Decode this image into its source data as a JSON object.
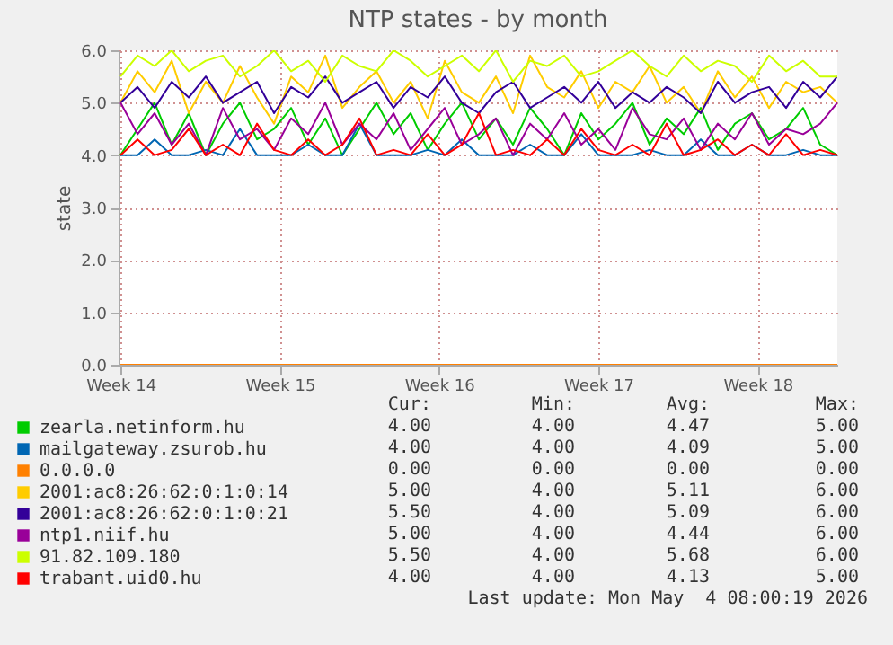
{
  "chart_data": {
    "type": "line",
    "title": "NTP states - by month",
    "ylabel": "state",
    "x": [
      "2026-03-30T00:00",
      "2026-03-30T18:00",
      "2026-03-31T12:00",
      "2026-04-01T06:00",
      "2026-04-02T00:00",
      "2026-04-02T18:00",
      "2026-04-03T12:00",
      "2026-04-04T06:00",
      "2026-04-05T00:00",
      "2026-04-05T18:00",
      "2026-04-06T12:00",
      "2026-04-07T06:00",
      "2026-04-08T00:00",
      "2026-04-08T18:00",
      "2026-04-09T12:00",
      "2026-04-10T06:00",
      "2026-04-11T00:00",
      "2026-04-11T18:00",
      "2026-04-12T12:00",
      "2026-04-13T06:00",
      "2026-04-14T00:00",
      "2026-04-14T18:00",
      "2026-04-15T12:00",
      "2026-04-16T06:00",
      "2026-04-17T00:00",
      "2026-04-17T18:00",
      "2026-04-18T12:00",
      "2026-04-19T06:00",
      "2026-04-20T00:00",
      "2026-04-20T18:00",
      "2026-04-21T12:00",
      "2026-04-22T06:00",
      "2026-04-23T00:00",
      "2026-04-23T18:00",
      "2026-04-24T12:00",
      "2026-04-25T06:00",
      "2026-04-26T00:00",
      "2026-04-26T18:00",
      "2026-04-27T12:00",
      "2026-04-28T06:00",
      "2026-04-29T00:00",
      "2026-04-29T18:00",
      "2026-04-30T12:00"
    ],
    "xlim": [
      "2026-03-29T22:00",
      "2026-04-30T12:00"
    ],
    "xticks": [
      {
        "value": "2026-03-30",
        "label": "Week 14"
      },
      {
        "value": "2026-04-06",
        "label": "Week 15"
      },
      {
        "value": "2026-04-13",
        "label": "Week 16"
      },
      {
        "value": "2026-04-20",
        "label": "Week 17"
      },
      {
        "value": "2026-04-27",
        "label": "Week 18"
      }
    ],
    "ylim": [
      0,
      6
    ],
    "yticks": [
      {
        "value": 0,
        "label": "0.0"
      },
      {
        "value": 1,
        "label": "1.0"
      },
      {
        "value": 2,
        "label": "2.0"
      },
      {
        "value": 3,
        "label": "3.0"
      },
      {
        "value": 4,
        "label": "4.0"
      },
      {
        "value": 5,
        "label": "5.0"
      },
      {
        "value": 6,
        "label": "6.0"
      }
    ],
    "grid": true,
    "legend": "bottom",
    "series": [
      {
        "name": "zearla.netinform.hu",
        "color": "#00cc00",
        "values": [
          4,
          4.5,
          5,
          4.2,
          4.8,
          4,
          4.6,
          5,
          4.3,
          4.5,
          4.9,
          4.2,
          4.7,
          4,
          4.5,
          5,
          4.4,
          4.8,
          4.1,
          4.6,
          5,
          4.3,
          4.7,
          4.2,
          4.9,
          4.5,
          4,
          4.8,
          4.3,
          4.6,
          5,
          4.2,
          4.7,
          4.4,
          4.9,
          4.1,
          4.6,
          4.8,
          4.3,
          4.5,
          4.9,
          4.2,
          4
        ]
      },
      {
        "name": "mailgateway.zsurob.hu",
        "color": "#0066b3",
        "values": [
          4,
          4,
          4.3,
          4,
          4,
          4.1,
          4,
          4.5,
          4,
          4,
          4,
          4.2,
          4,
          4,
          4.6,
          4,
          4,
          4,
          4.1,
          4,
          4.3,
          4,
          4,
          4,
          4.2,
          4,
          4,
          4.4,
          4,
          4,
          4,
          4.1,
          4,
          4,
          4.3,
          4,
          4,
          4.2,
          4,
          4,
          4.1,
          4,
          4
        ]
      },
      {
        "name": "0.0.0.0",
        "color": "#ff8000",
        "values": [
          0,
          0,
          0,
          0,
          0,
          0,
          0,
          0,
          0,
          0,
          0,
          0,
          0,
          0,
          0,
          0,
          0,
          0,
          0,
          0,
          0,
          0,
          0,
          0,
          0,
          0,
          0,
          0,
          0,
          0,
          0,
          0,
          0,
          0,
          0,
          0,
          0,
          0,
          0,
          0,
          0,
          0,
          0
        ]
      },
      {
        "name": "2001:ac8:26:62:0:1:0:14",
        "color": "#ffcc00",
        "values": [
          5,
          5.6,
          5.2,
          5.8,
          4.8,
          5.4,
          5,
          5.7,
          5.1,
          4.6,
          5.5,
          5.2,
          5.9,
          4.9,
          5.3,
          5.6,
          5,
          5.4,
          4.7,
          5.8,
          5.2,
          5,
          5.5,
          4.8,
          5.9,
          5.3,
          5.1,
          5.6,
          4.9,
          5.4,
          5.2,
          5.7,
          5,
          5.3,
          4.8,
          5.6,
          5.1,
          5.5,
          4.9,
          5.4,
          5.2,
          5.3,
          5
        ]
      },
      {
        "name": "2001:ac8:26:62:0:1:0:21",
        "color": "#330099",
        "values": [
          5,
          5.3,
          4.9,
          5.4,
          5.1,
          5.5,
          5,
          5.2,
          5.4,
          4.8,
          5.3,
          5.1,
          5.5,
          5,
          5.2,
          5.4,
          4.9,
          5.3,
          5.1,
          5.5,
          5,
          4.8,
          5.2,
          5.4,
          4.9,
          5.1,
          5.3,
          5,
          5.4,
          4.9,
          5.2,
          5,
          5.3,
          5.1,
          4.8,
          5.4,
          5,
          5.2,
          5.3,
          4.9,
          5.4,
          5.1,
          5.5
        ]
      },
      {
        "name": "ntp1.niif.hu",
        "color": "#990099",
        "values": [
          5,
          4.4,
          4.8,
          4.2,
          4.6,
          4,
          4.9,
          4.3,
          4.5,
          4.1,
          4.7,
          4.4,
          5,
          4.2,
          4.6,
          4.3,
          4.8,
          4.1,
          4.5,
          4.9,
          4.2,
          4.4,
          4.7,
          4,
          4.6,
          4.3,
          4.8,
          4.2,
          4.5,
          4.1,
          4.9,
          4.4,
          4.3,
          4.7,
          4.1,
          4.6,
          4.3,
          4.8,
          4.2,
          4.5,
          4.4,
          4.6,
          5
        ]
      },
      {
        "name": "91.82.109.180",
        "color": "#ccff00",
        "values": [
          5.5,
          5.9,
          5.7,
          6,
          5.6,
          5.8,
          5.9,
          5.5,
          5.7,
          6,
          5.6,
          5.8,
          5.4,
          5.9,
          5.7,
          5.6,
          6,
          5.8,
          5.5,
          5.7,
          5.9,
          5.6,
          6,
          5.4,
          5.8,
          5.7,
          5.9,
          5.5,
          5.6,
          5.8,
          6,
          5.7,
          5.5,
          5.9,
          5.6,
          5.8,
          5.7,
          5.4,
          5.9,
          5.6,
          5.8,
          5.5,
          5.5
        ]
      },
      {
        "name": "trabant.uid0.hu",
        "color": "#ff0000",
        "values": [
          4,
          4.3,
          4,
          4.1,
          4.5,
          4,
          4.2,
          4,
          4.6,
          4.1,
          4,
          4.3,
          4,
          4.2,
          4.7,
          4,
          4.1,
          4,
          4.4,
          4,
          4.2,
          4.8,
          4,
          4.1,
          4,
          4.3,
          4,
          4.5,
          4.1,
          4,
          4.2,
          4,
          4.6,
          4,
          4.1,
          4.3,
          4,
          4.2,
          4,
          4.4,
          4,
          4.1,
          4
        ]
      }
    ],
    "annotations": [
      "Cur:",
      "Min:",
      "Avg:",
      "Max:",
      "4.00",
      "4.00",
      "4.47",
      "5.00",
      "4.00",
      "4.00",
      "4.09",
      "5.00",
      "0.00",
      "0.00",
      "0.00",
      "0.00",
      "5.00",
      "4.00",
      "5.11",
      "6.00",
      "5.50",
      "4.00",
      "5.09",
      "6.00",
      "5.00",
      "4.00",
      "4.44",
      "6.00",
      "5.50",
      "4.00",
      "5.68",
      "6.00",
      "4.00",
      "4.00",
      "4.13",
      "5.00",
      "Last update: Mon May  4 08:00:19 2026"
    ]
  }
}
